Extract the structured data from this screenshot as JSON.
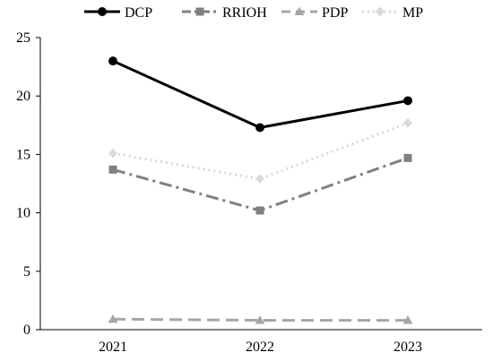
{
  "chart_data": {
    "type": "line",
    "title": "",
    "xlabel": "",
    "ylabel": "",
    "categories": [
      "2021",
      "2022",
      "2023"
    ],
    "ylim": [
      0,
      25
    ],
    "yticks": [
      0,
      5,
      10,
      15,
      20,
      25
    ],
    "grid": false,
    "legend_position": "top",
    "series": [
      {
        "name": "DCP",
        "values": [
          23.0,
          17.3,
          19.6
        ],
        "color": "#000000",
        "dash": "solid",
        "marker": "circle"
      },
      {
        "name": "RRIOH",
        "values": [
          13.7,
          10.2,
          14.7
        ],
        "color": "#808080",
        "dash": "dash-dot",
        "marker": "square"
      },
      {
        "name": "PDP",
        "values": [
          0.9,
          0.8,
          0.8
        ],
        "color": "#a6a6a6",
        "dash": "long-dash",
        "marker": "triangle"
      },
      {
        "name": "MP",
        "values": [
          15.1,
          12.9,
          17.7
        ],
        "color": "#d9d9d9",
        "dash": "dotted",
        "marker": "diamond"
      }
    ]
  }
}
